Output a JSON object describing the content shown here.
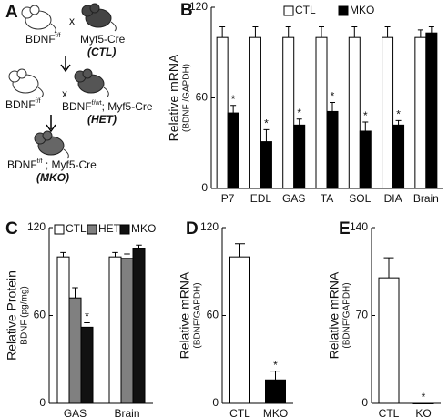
{
  "diagram": {
    "letter": "A",
    "row1": {
      "left": "BDNF",
      "left_sup": "f/f",
      "cross": "x",
      "right": "Myf5-Cre",
      "tag": "(CTL)"
    },
    "row2": {
      "left": "BDNF",
      "left_sup": "f/f",
      "cross": "x",
      "right": "BDNF",
      "right_sup": "f/wt",
      "right_rest": "; Myf5-Cre",
      "tag": "(HET)"
    },
    "row3": {
      "left": "BDNF",
      "left_sup": "f/f",
      "rest": " ; Myf5-Cre",
      "tag": "(MKO)"
    }
  },
  "chart_data": [
    {
      "type": "bar",
      "panel": "B",
      "ylabel": "Relative mRNA",
      "ylabel_sub": "(BDNF /GAPDH)",
      "legend": "top",
      "categories": [
        "P7",
        "EDL",
        "GAS",
        "TA",
        "SOL",
        "DIA",
        "Brain"
      ],
      "series": [
        {
          "name": "CTL",
          "color": "#ffffff",
          "values": [
            100,
            100,
            100,
            100,
            100,
            100,
            100
          ],
          "errors": [
            7,
            7,
            7,
            7,
            7,
            7,
            5
          ]
        },
        {
          "name": "MKO",
          "color": "#000000",
          "values": [
            50,
            31,
            42,
            51,
            38,
            42,
            103
          ],
          "errors": [
            5,
            8,
            4,
            6,
            6,
            3,
            4
          ],
          "significance": [
            "*",
            "*",
            "*",
            "*",
            "*",
            "*",
            null
          ]
        }
      ],
      "ylim": [
        0,
        120
      ],
      "yticks": [
        0,
        60,
        120
      ]
    },
    {
      "type": "bar",
      "panel": "C",
      "ylabel": "Relative Protein",
      "ylabel_sub": "BDNF (pg/mg)",
      "legend": "top",
      "categories": [
        "GAS",
        "Brain"
      ],
      "series": [
        {
          "name": "CTL",
          "color": "#ffffff",
          "values": [
            100,
            100
          ],
          "errors": [
            3,
            3
          ]
        },
        {
          "name": "HET",
          "color": "#808080",
          "values": [
            72,
            99
          ],
          "errors": [
            7,
            3
          ]
        },
        {
          "name": "MKO",
          "color": "#111111",
          "values": [
            52,
            106
          ],
          "errors": [
            3,
            2
          ],
          "significance": [
            "*",
            null
          ]
        }
      ],
      "ylim": [
        0,
        120
      ],
      "yticks": [
        0,
        60,
        120
      ]
    },
    {
      "type": "bar",
      "panel": "D",
      "ylabel": "Relative mRNA",
      "ylabel_sub": "(BDNF/GAPDH)",
      "categories": [
        "CTL",
        "MKO"
      ],
      "values": [
        100,
        16
      ],
      "errors": [
        9,
        6
      ],
      "colors": [
        "#ffffff",
        "#000000"
      ],
      "significance": [
        null,
        "*"
      ],
      "ylim": [
        0,
        120
      ],
      "yticks": [
        0,
        60,
        120
      ]
    },
    {
      "type": "bar",
      "panel": "E",
      "ylabel": "Relative mRNA",
      "ylabel_sub": "(BDNF/GAPDH)",
      "categories": [
        "CTL",
        "KO"
      ],
      "values": [
        100,
        0
      ],
      "errors": [
        16,
        null
      ],
      "colors": [
        "#ffffff",
        "#000000"
      ],
      "significance": [
        null,
        "*"
      ],
      "ylim": [
        0,
        140
      ],
      "yticks": [
        0,
        70,
        140
      ]
    }
  ]
}
